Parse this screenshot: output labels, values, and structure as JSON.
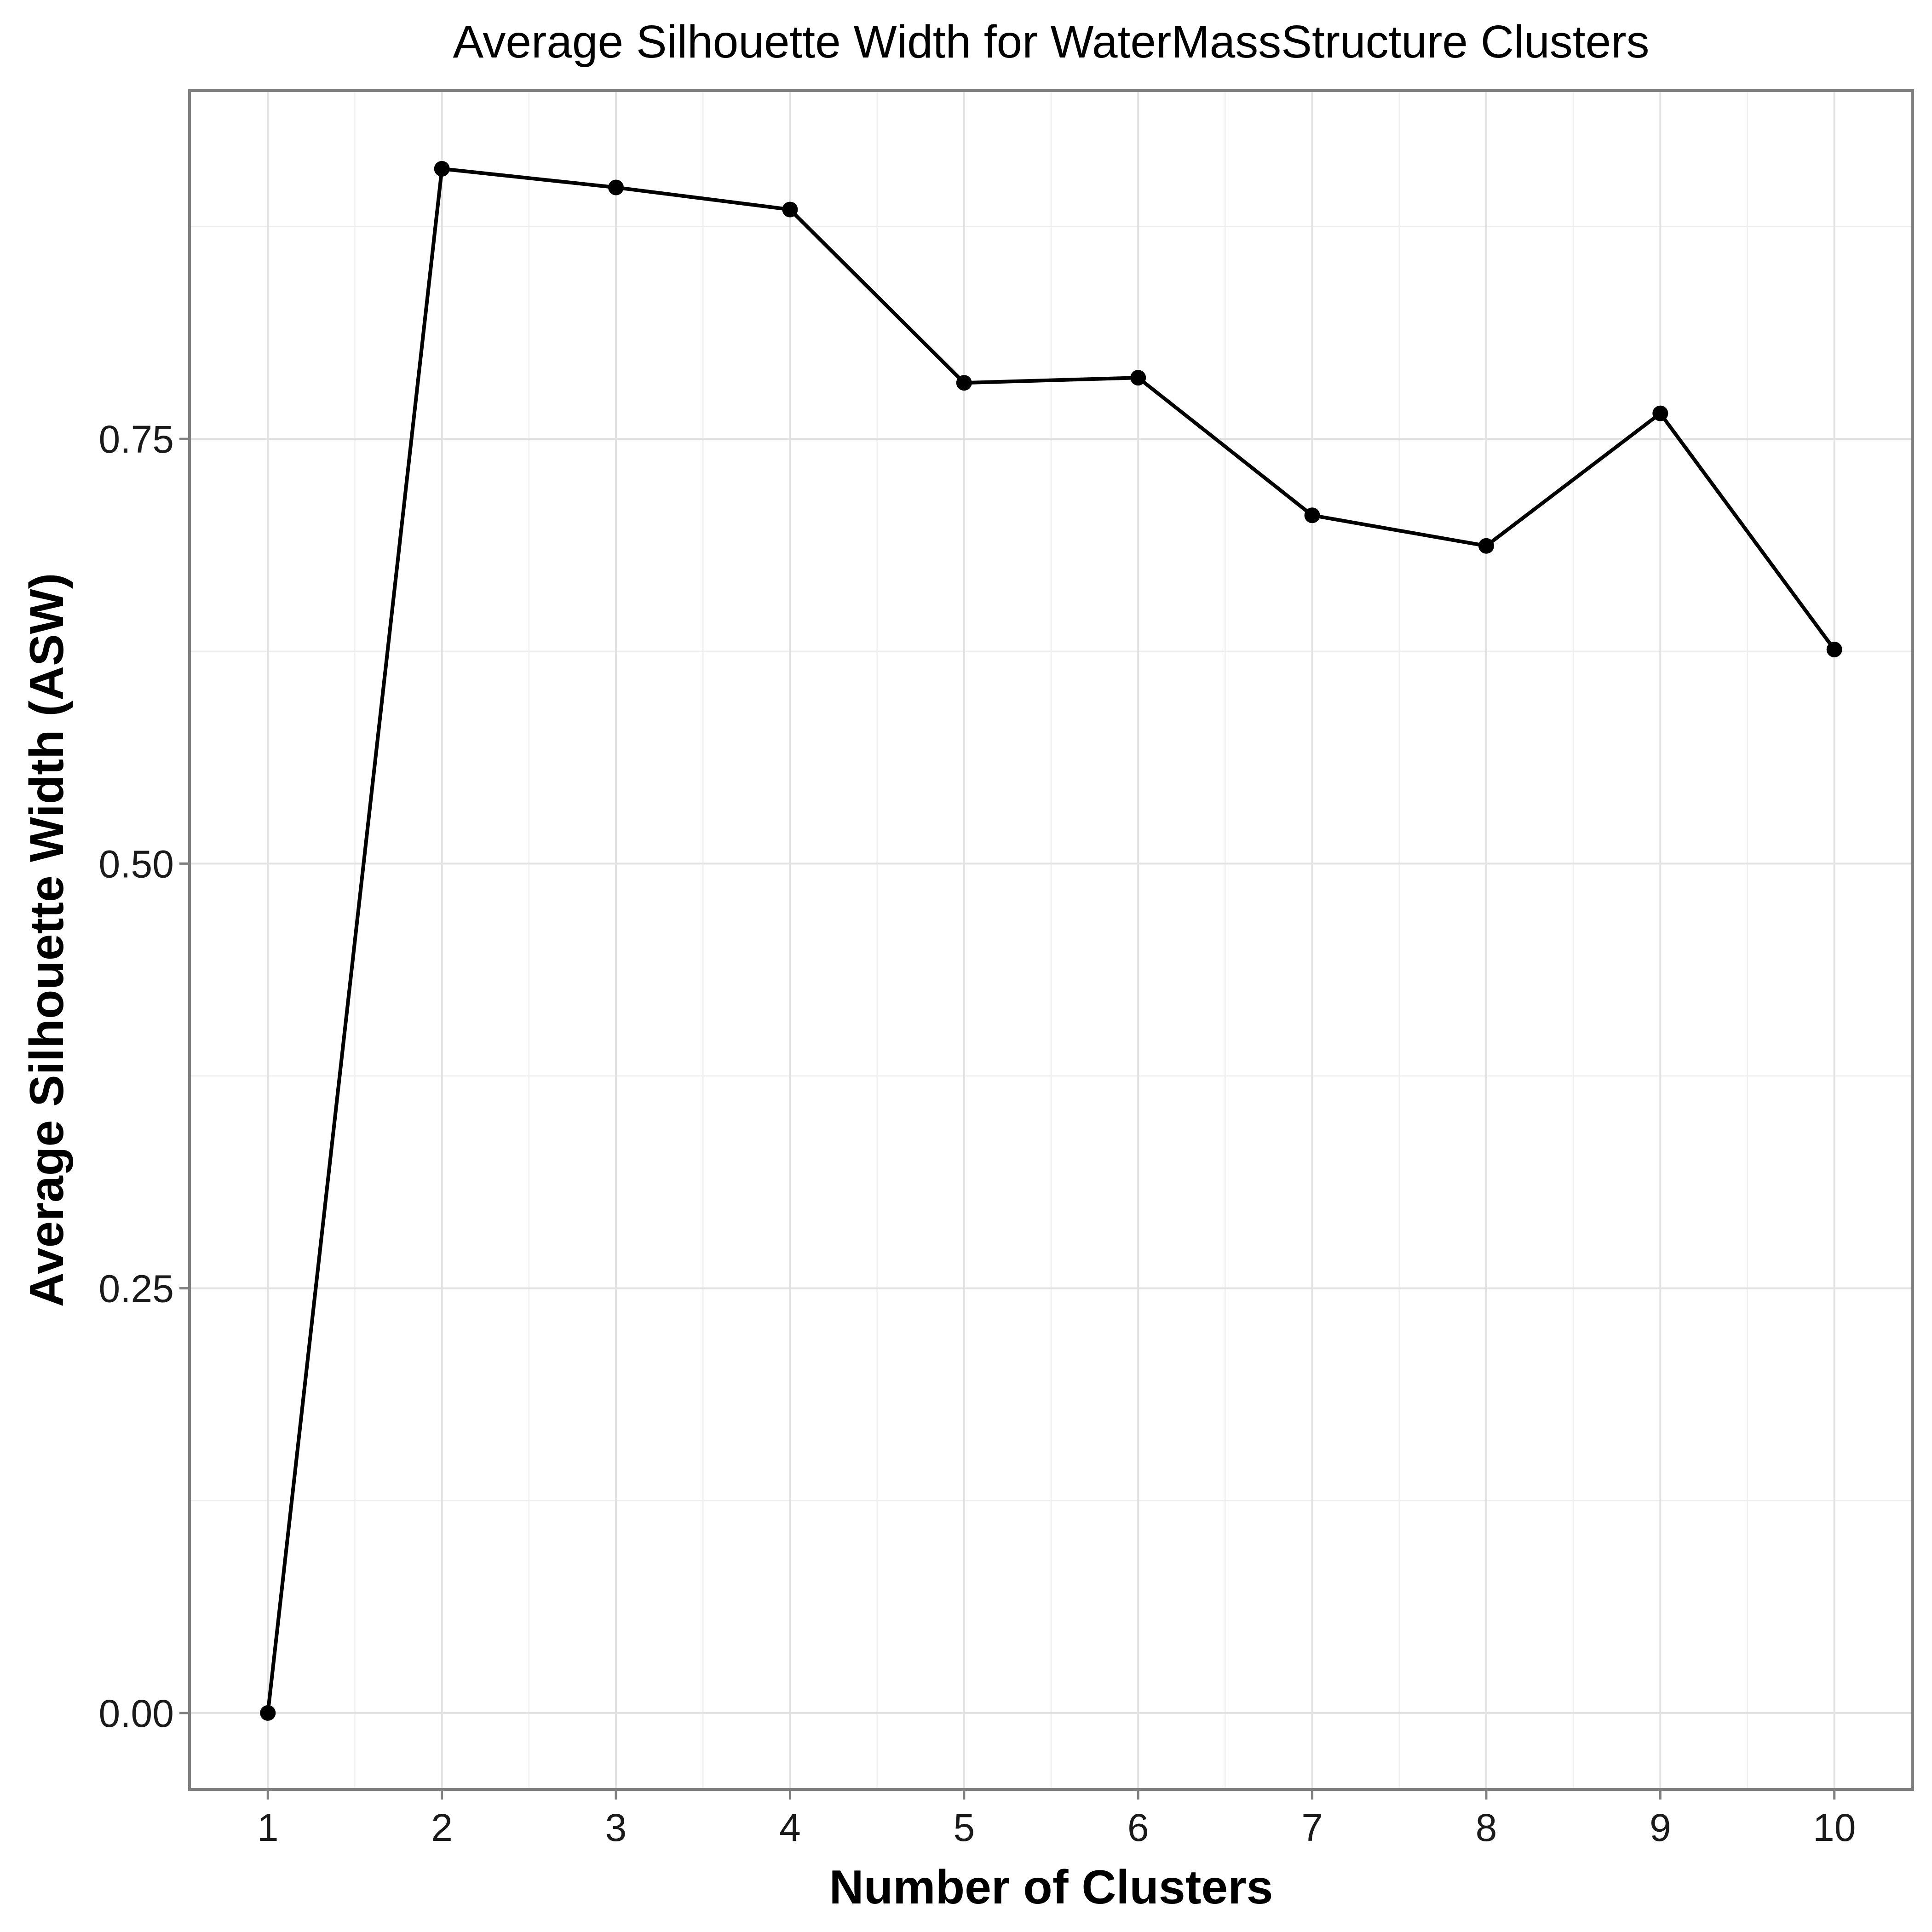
{
  "chart_data": {
    "type": "line",
    "title": "Average Silhouette Width for WaterMassStructure Clusters",
    "xlabel": "Number of Clusters",
    "ylabel": "Average Silhouette Width (ASW)",
    "x": [
      1,
      2,
      3,
      4,
      5,
      6,
      7,
      8,
      9,
      10
    ],
    "series": [
      {
        "values": [
          0.0,
          0.909,
          0.898,
          0.885,
          0.783,
          0.786,
          0.705,
          0.687,
          0.765,
          0.626
        ]
      }
    ],
    "xlim": [
      0.55,
      10.45
    ],
    "ylim": [
      -0.045,
      0.955
    ],
    "x_ticks": [
      1,
      2,
      3,
      4,
      5,
      6,
      7,
      8,
      9,
      10
    ],
    "x_tick_labels": [
      "1",
      "2",
      "3",
      "4",
      "5",
      "6",
      "7",
      "8",
      "9",
      "10"
    ],
    "y_ticks": [
      0,
      0.25,
      0.5,
      0.75
    ],
    "y_tick_labels": [
      "0.00",
      "0.25",
      "0.50",
      "0.75"
    ],
    "grid": true,
    "legend": "none",
    "colors": {
      "line": "#000000",
      "points": "#000000",
      "grid": "#e2e2e2",
      "border": "#7f7f7f"
    }
  }
}
